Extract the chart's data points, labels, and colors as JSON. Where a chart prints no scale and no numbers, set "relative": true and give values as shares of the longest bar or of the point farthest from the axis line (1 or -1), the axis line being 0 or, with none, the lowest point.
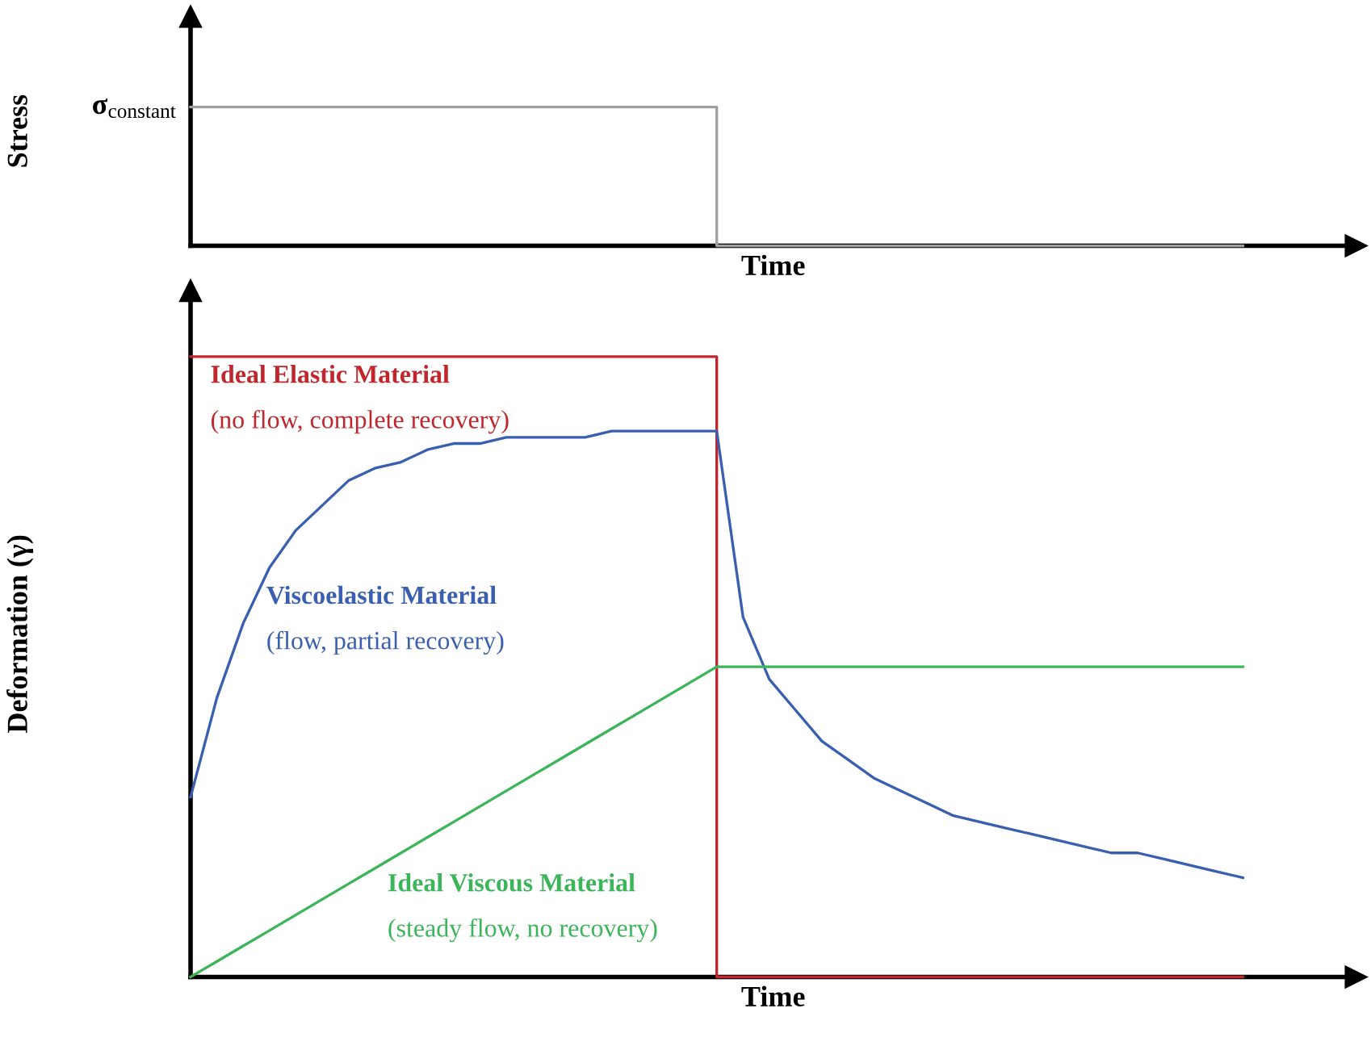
{
  "chart_data": [
    {
      "type": "step",
      "relative": true,
      "xlabel": "Time",
      "ylabel": "Stress",
      "categories": [
        null,
        null,
        null,
        null,
        null,
        null,
        null,
        null,
        null,
        null,
        null,
        null,
        null,
        null,
        null,
        null,
        null,
        null,
        null,
        null,
        null,
        null,
        null,
        null,
        null,
        null,
        null,
        null,
        null,
        null,
        null,
        null,
        null,
        null,
        null,
        null,
        null,
        null,
        null,
        null,
        null
      ],
      "series": [
        {
          "color": "#a0a0a0",
          "values": [
            1,
            1,
            1,
            1,
            1,
            1,
            1,
            1,
            1,
            1,
            1,
            1,
            1,
            1,
            1,
            1,
            1,
            1,
            1,
            1,
            0,
            0,
            0,
            0,
            0,
            0,
            0,
            0,
            0,
            0,
            0,
            0,
            0,
            0,
            0,
            0,
            0,
            0,
            0,
            0,
            0
          ]
        }
      ],
      "annotations": [
        "σ$_{constant}$"
      ]
    },
    {
      "type": "line",
      "relative": true,
      "xlabel": "Time",
      "ylabel": "Deformation (γ)",
      "categories": [
        null,
        null,
        null,
        null,
        null,
        null,
        null,
        null,
        null,
        null,
        null,
        null,
        null,
        null,
        null,
        null,
        null,
        null,
        null,
        null,
        null,
        null,
        null,
        null,
        null,
        null,
        null,
        null,
        null,
        null,
        null,
        null,
        null,
        null,
        null,
        null,
        null,
        null,
        null,
        null,
        null
      ],
      "series": [
        {
          "type": "step",
          "name": "Ideal Elastic Material",
          "color": "#c0272d",
          "values": [
            1,
            1,
            1,
            1,
            1,
            1,
            1,
            1,
            1,
            1,
            1,
            1,
            1,
            1,
            1,
            1,
            1,
            1,
            1,
            1,
            0,
            0,
            0,
            0,
            0,
            0,
            0,
            0,
            0,
            0,
            0,
            0,
            0,
            0,
            0,
            0,
            0,
            0,
            0,
            0,
            0
          ]
        },
        {
          "name": "Viscoelastic Material",
          "color": "#3a5fb0",
          "values": [
            0.29,
            0.45,
            0.57,
            0.66,
            0.72,
            0.76,
            0.8,
            0.82,
            0.83,
            0.85,
            0.86,
            0.86,
            0.87,
            0.87,
            0.87,
            0.87,
            0.88,
            0.88,
            0.88,
            0.88,
            0.88,
            0.58,
            0.48,
            0.43,
            0.38,
            0.35,
            0.32,
            0.3,
            0.28,
            0.26,
            0.25,
            0.24,
            0.23,
            0.22,
            0.21,
            0.2,
            0.2,
            0.19,
            0.18,
            0.17,
            0.16
          ]
        },
        {
          "name": "Ideal Viscous Material",
          "color": "#3cb55a",
          "values": [
            0,
            0.025,
            0.05,
            0.075,
            0.1,
            0.125,
            0.15,
            0.175,
            0.2,
            0.225,
            0.25,
            0.275,
            0.3,
            0.325,
            0.35,
            0.375,
            0.4,
            0.425,
            0.45,
            0.475,
            0.5,
            0.5,
            0.5,
            0.5,
            0.5,
            0.5,
            0.5,
            0.5,
            0.5,
            0.5,
            0.5,
            0.5,
            0.5,
            0.5,
            0.5,
            0.5,
            0.5,
            0.5,
            0.5,
            0.5,
            0.5
          ]
        }
      ],
      "annotations": [
        "(no flow, complete recovery)",
        "(flow, partial recovery)",
        "(steady flow, no recovery)"
      ]
    }
  ]
}
